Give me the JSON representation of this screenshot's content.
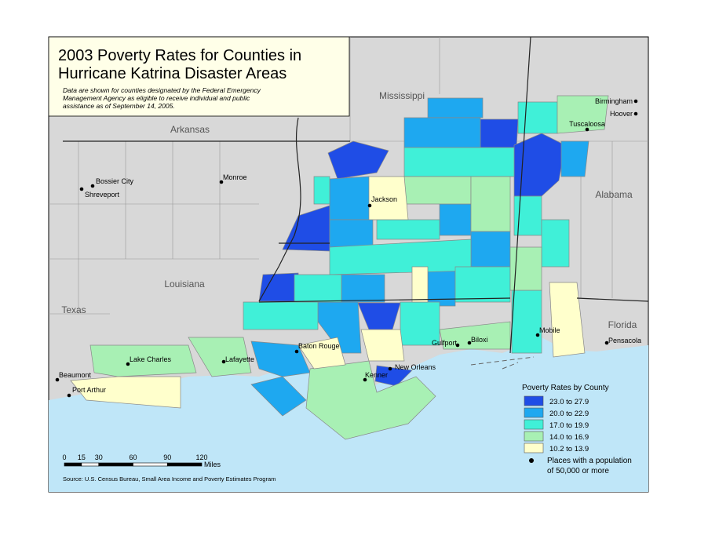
{
  "title": [
    "2003 Poverty Rates for Counties in",
    "Hurricane Katrina Disaster Areas"
  ],
  "note": [
    "Data are shown for counties designated by the Federal Emergency",
    "Management Agency as eligible to receive individual and public",
    "assistance as of September 14, 2005."
  ],
  "states": [
    "Arkansas",
    "Mississippi",
    "Alabama",
    "Louisiana",
    "Texas",
    "Florida"
  ],
  "cities": [
    "Birmingham",
    "Hoover",
    "Tuscaloosa",
    "Bossier City",
    "Shreveport",
    "Monroe",
    "Jackson",
    "Baton Rouge",
    "Lafayette",
    "Lake Charles",
    "Beaumont",
    "Port Arthur",
    "Kenner",
    "New Orleans",
    "Gulfport",
    "Biloxi",
    "Mobile",
    "Pensacola"
  ],
  "legend": {
    "title": "Poverty Rates by County",
    "items": [
      {
        "label": "23.0 to 27.9",
        "color": "#1f4de6"
      },
      {
        "label": "20.0 to 22.9",
        "color": "#1ea8f0"
      },
      {
        "label": "17.0 to 19.9",
        "color": "#40f0d8"
      },
      {
        "label": "14.0 to 16.9",
        "color": "#a8f0b4"
      },
      {
        "label": "10.2 to 13.9",
        "color": "#ffffcc"
      }
    ],
    "places": [
      "Places with a population",
      "of 50,000 or more"
    ]
  },
  "scale": {
    "ticks": [
      0,
      15,
      30,
      60,
      90,
      120
    ],
    "unit": "Miles"
  },
  "source": "Source: U.S. Census Bureau, Small Area Income and Poverty Estimates Program"
}
